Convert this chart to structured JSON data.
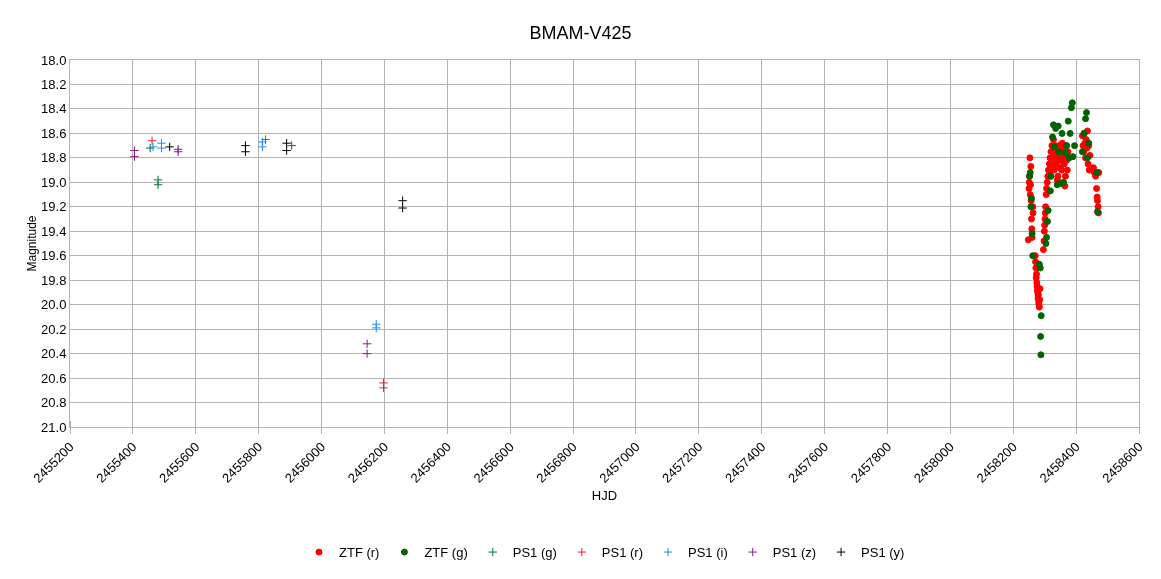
{
  "chart_data": {
    "type": "scatter",
    "title": "BMAM-V425",
    "xlabel": "HJD",
    "ylabel": "Magnitude",
    "xlim": [
      2455200,
      2458600
    ],
    "xticks": [
      2455200,
      2455400,
      2455600,
      2455800,
      2456000,
      2456200,
      2456400,
      2456600,
      2456800,
      2457000,
      2457200,
      2457400,
      2457600,
      2457800,
      2458000,
      2458200,
      2458400,
      2458600
    ],
    "ylim": [
      21.0,
      18.0
    ],
    "yticks": [
      {
        "value": 18,
        "label": "18.0"
      },
      {
        "value": 18.2,
        "label": "18.2"
      },
      {
        "value": 18.4,
        "label": "18.4"
      },
      {
        "value": 18.6,
        "label": "18.6"
      },
      {
        "value": 18.8,
        "label": "18.8"
      },
      {
        "value": 19,
        "label": "19.0"
      },
      {
        "value": 19.2,
        "label": "19.2"
      },
      {
        "value": 19.4,
        "label": "19.4"
      },
      {
        "value": 19.6,
        "label": "19.6"
      },
      {
        "value": 19.8,
        "label": "19.8"
      },
      {
        "value": 20,
        "label": "20.0"
      },
      {
        "value": 20.2,
        "label": "20.2"
      },
      {
        "value": 20.4,
        "label": "20.4"
      },
      {
        "value": 20.6,
        "label": "20.6"
      },
      {
        "value": 20.8,
        "label": "20.8"
      },
      {
        "value": 21,
        "label": "21.0"
      }
    ],
    "grid": true,
    "legend": "bottom",
    "series": [
      {
        "name": "ZTF (r)",
        "color": "#ff0000",
        "marker": "circle",
        "x": [
          2458248,
          2458250,
          2458251,
          2458252,
          2458253,
          2458254,
          2458255,
          2458256,
          2458257,
          2458258,
          2458259,
          2458260,
          2458262,
          2458263,
          2458270,
          2458271,
          2458272,
          2458273,
          2458274,
          2458275,
          2458276,
          2458277,
          2458278,
          2458279,
          2458280,
          2458281,
          2458282,
          2458283,
          2458284,
          2458285,
          2458296,
          2458298,
          2458299,
          2458300,
          2458301,
          2458302,
          2458303,
          2458305,
          2458306,
          2458308,
          2458310,
          2458312,
          2458315,
          2458317,
          2458318,
          2458320,
          2458322,
          2458323,
          2458325,
          2458327,
          2458328,
          2458330,
          2458332,
          2458334,
          2458336,
          2458338,
          2458340,
          2458342,
          2458344,
          2458346,
          2458348,
          2458350,
          2458352,
          2458354,
          2458356,
          2458358,
          2458360,
          2458362,
          2458364,
          2458366,
          2458368,
          2458370,
          2458372,
          2458374,
          2458376,
          2458420,
          2458422,
          2458424,
          2458426,
          2458428,
          2458430,
          2458432,
          2458434,
          2458436,
          2458438,
          2458440,
          2458442,
          2458444,
          2458455,
          2458458,
          2458462,
          2458465,
          2458467,
          2458468,
          2458470,
          2458471,
          2458472
        ],
        "values": [
          19.47,
          19.05,
          19.0,
          18.95,
          18.8,
          19.1,
          19.02,
          18.87,
          19.15,
          19.3,
          19.38,
          19.45,
          19.2,
          19.25,
          19.6,
          19.65,
          19.7,
          19.78,
          19.75,
          19.82,
          19.85,
          19.88,
          19.9,
          19.95,
          19.92,
          19.98,
          20.0,
          20.02,
          19.96,
          19.87,
          19.55,
          19.48,
          19.4,
          19.35,
          19.3,
          19.25,
          19.2,
          19.1,
          19.05,
          19.0,
          18.95,
          18.9,
          18.85,
          18.8,
          18.95,
          18.75,
          18.9,
          18.7,
          18.85,
          18.8,
          18.65,
          18.9,
          18.75,
          18.7,
          18.85,
          18.8,
          18.98,
          18.95,
          18.78,
          18.7,
          18.88,
          18.82,
          18.75,
          18.9,
          18.68,
          18.8,
          18.72,
          18.85,
          19.03,
          18.95,
          18.7,
          18.82,
          18.9,
          18.75,
          18.8,
          18.62,
          18.7,
          18.75,
          18.6,
          18.68,
          18.8,
          18.65,
          18.72,
          18.58,
          18.85,
          18.7,
          18.9,
          18.78,
          18.88,
          18.92,
          18.95,
          19.05,
          19.12,
          19.15,
          19.2,
          19.25,
          18.92
        ]
      },
      {
        "name": "ZTF (g)",
        "color": "#006400",
        "marker": "circle",
        "x": [
          2458252,
          2458254,
          2458256,
          2458258,
          2458260,
          2458262,
          2458283,
          2458286,
          2458289,
          2458287,
          2458288,
          2458304,
          2458306,
          2458309,
          2458311,
          2458318,
          2458320,
          2458325,
          2458328,
          2458330,
          2458335,
          2458340,
          2458343,
          2458345,
          2458350,
          2458355,
          2458360,
          2458365,
          2458370,
          2458375,
          2458378,
          2458381,
          2458385,
          2458388,
          2458390,
          2458395,
          2458420,
          2458425,
          2458430,
          2458433,
          2458436,
          2458440,
          2458466,
          2458468
        ],
        "values": [
          18.95,
          18.92,
          19.2,
          19.13,
          19.42,
          19.6,
          19.67,
          19.7,
          20.09,
          20.26,
          20.41,
          19.5,
          19.45,
          19.32,
          19.23,
          19.07,
          18.95,
          18.63,
          18.53,
          18.71,
          18.56,
          19.02,
          18.54,
          18.75,
          19.01,
          18.6,
          19.0,
          18.76,
          18.7,
          18.5,
          18.8,
          18.6,
          18.39,
          18.35,
          18.79,
          18.7,
          18.75,
          18.6,
          18.48,
          18.43,
          18.8,
          18.68,
          18.92,
          19.24
        ]
      },
      {
        "name": "PS1 (g)",
        "color": "#00733c",
        "marker": "cross",
        "x": [
          2455455,
          2455480,
          2455480
        ],
        "values": [
          18.72,
          18.98,
          19.02
        ]
      },
      {
        "name": "PS1 (r)",
        "color": "#ff2020",
        "marker": "cross",
        "x": [
          2455461,
          2455822,
          2456197,
          2456197
        ],
        "values": [
          18.66,
          18.65,
          20.64,
          20.68
        ]
      },
      {
        "name": "PS1 (i)",
        "color": "#1e8cff",
        "marker": "cross",
        "x": [
          2455464,
          2455491,
          2455491,
          2455812,
          2455812,
          2456174,
          2456174
        ],
        "values": [
          18.71,
          18.68,
          18.72,
          18.67,
          18.71,
          20.16,
          20.19
        ]
      },
      {
        "name": "PS1 (z)",
        "color": "#8b1a8b",
        "marker": "cross",
        "x": [
          2455405,
          2455405,
          2455544,
          2455544,
          2455905,
          2456145,
          2456145
        ],
        "values": [
          18.74,
          18.79,
          18.73,
          18.75,
          18.7,
          20.32,
          20.4
        ]
      },
      {
        "name": "PS1 (y)",
        "color": "#000000",
        "marker": "cross",
        "x": [
          2455517,
          2455758,
          2455758,
          2455889,
          2455889,
          2456258,
          2456258
        ],
        "values": [
          18.71,
          18.7,
          18.75,
          18.68,
          18.74,
          19.15,
          19.21
        ]
      }
    ]
  }
}
